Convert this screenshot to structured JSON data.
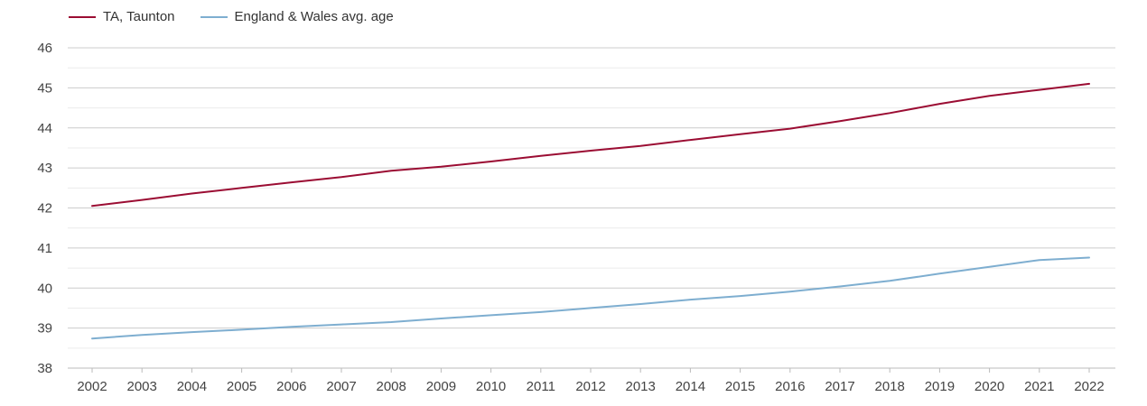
{
  "chart_data": {
    "type": "line",
    "title": "",
    "xlabel": "",
    "ylabel": "",
    "ylim": [
      38,
      46
    ],
    "yticks": [
      38,
      39,
      40,
      41,
      42,
      43,
      44,
      45,
      46
    ],
    "grid": true,
    "legend_position": "top-left",
    "categories": [
      "2002",
      "2003",
      "2004",
      "2005",
      "2006",
      "2007",
      "2008",
      "2009",
      "2010",
      "2011",
      "2012",
      "2013",
      "2014",
      "2015",
      "2016",
      "2017",
      "2018",
      "2019",
      "2020",
      "2021",
      "2022"
    ],
    "series": [
      {
        "name": "TA, Taunton",
        "color": "#9b0d33",
        "values": [
          42.05,
          42.2,
          42.36,
          42.5,
          42.64,
          42.77,
          42.93,
          43.03,
          43.16,
          43.3,
          43.43,
          43.55,
          43.7,
          43.84,
          43.98,
          44.17,
          44.37,
          44.6,
          44.8,
          44.95,
          45.1
        ]
      },
      {
        "name": "England & Wales avg. age",
        "color": "#7eaed0",
        "values": [
          38.74,
          38.83,
          38.9,
          38.96,
          39.03,
          39.09,
          39.15,
          39.24,
          39.32,
          39.4,
          39.5,
          39.6,
          39.71,
          39.8,
          39.91,
          40.04,
          40.18,
          40.36,
          40.53,
          40.7,
          40.76
        ]
      }
    ]
  }
}
